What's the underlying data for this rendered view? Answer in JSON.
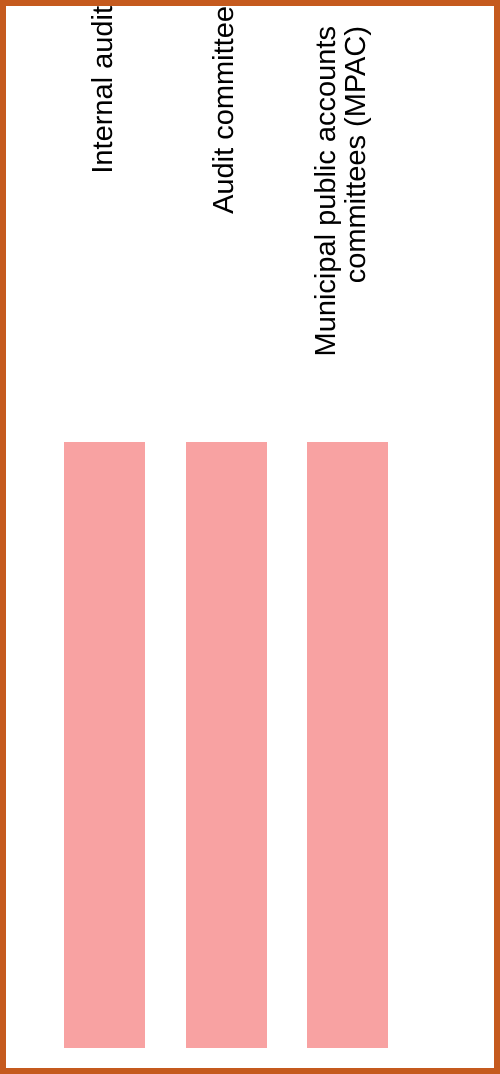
{
  "frame": {
    "border_color": "#c55a1e"
  },
  "bar_color": "#f8a2a2",
  "columns": [
    {
      "label": "Internal audit"
    },
    {
      "label": "Audit committee"
    },
    {
      "label": "Municipal public accounts committees (MPAC)"
    }
  ]
}
